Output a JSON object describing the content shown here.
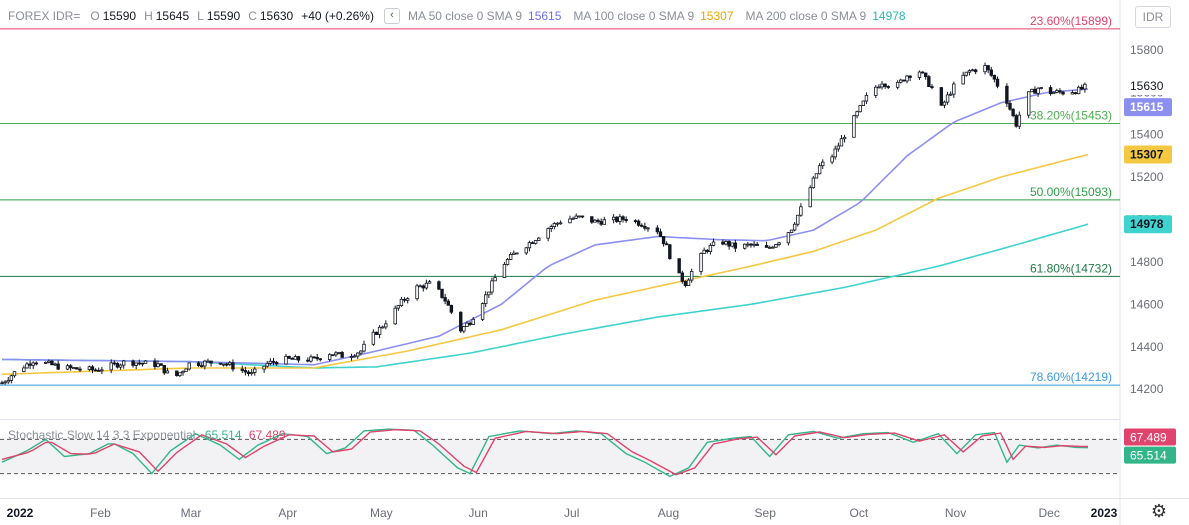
{
  "header": {
    "symbol": "FOREX IDR=",
    "open_label": "O",
    "open": "15590",
    "high_label": "H",
    "high": "15645",
    "low_label": "L",
    "low": "15590",
    "close_label": "C",
    "close": "15630",
    "change": "+40 (+0.26%)",
    "collapse_glyph": "‹",
    "ma50_label": "MA 50 close 0 SMA 9",
    "ma50_value": "15615",
    "ma100_label": "MA 100 close 0 SMA 9",
    "ma100_value": "15307",
    "ma200_label": "MA 200 close 0 SMA 9",
    "ma200_value": "14978"
  },
  "currency_button": "IDR",
  "stochastic": {
    "label": "Stochastic Slow 14 3 3 Exponential",
    "k_value": "65.514",
    "d_value": "67.489"
  },
  "colors": {
    "up": "#131722",
    "down": "#131722",
    "ma50": "#8b8ff0",
    "ma100": "#f5c842",
    "ma200": "#3fd3cf",
    "stoch_k": "#33b58a",
    "stoch_d": "#e0436b",
    "price_badge": "#ffffff"
  },
  "chart_data": {
    "type": "candlestick",
    "title": "FOREX IDR=",
    "y_ticks": [
      "15800",
      "15600",
      "15400",
      "15200",
      "15000",
      "14800",
      "14600",
      "14400",
      "14200"
    ],
    "ylim": [
      14130,
      15960
    ],
    "x_labels": [
      "2022",
      "Feb",
      "Mar",
      "Apr",
      "May",
      "Jun",
      "Jul",
      "Aug",
      "Sep",
      "Oct",
      "Nov",
      "Dec",
      "2023"
    ],
    "price_badges": {
      "last": "15630",
      "ma50": "15615",
      "ma100": "15307",
      "ma200": "14978"
    },
    "fib_levels": [
      {
        "label": "23.60%(15899)",
        "value": 15899,
        "color": "#e0436b"
      },
      {
        "label": "38.20%(15453)",
        "value": 15453,
        "color": "#4caf50"
      },
      {
        "label": "50.00%(15093)",
        "value": 15093,
        "color": "#2e9e48"
      },
      {
        "label": "61.80%(14732)",
        "value": 14732,
        "color": "#1f7a45"
      },
      {
        "label": "78.60%(14219)",
        "value": 14219,
        "color": "#3a9cd8"
      }
    ],
    "close_path": [
      [
        0,
        14230
      ],
      [
        5,
        14290
      ],
      [
        10,
        14335
      ],
      [
        20,
        14300
      ],
      [
        30,
        14290
      ],
      [
        40,
        14330
      ],
      [
        50,
        14315
      ],
      [
        55,
        14250
      ],
      [
        60,
        14320
      ],
      [
        70,
        14330
      ],
      [
        80,
        14270
      ],
      [
        85,
        14320
      ],
      [
        90,
        14340
      ],
      [
        100,
        14340
      ],
      [
        105,
        14370
      ],
      [
        110,
        14355
      ],
      [
        115,
        14380
      ],
      [
        118,
        14440
      ],
      [
        122,
        14500
      ],
      [
        128,
        14610
      ],
      [
        133,
        14680
      ],
      [
        138,
        14700
      ],
      [
        142,
        14620
      ],
      [
        147,
        14480
      ],
      [
        150,
        14520
      ],
      [
        155,
        14640
      ],
      [
        160,
        14780
      ],
      [
        165,
        14850
      ],
      [
        170,
        14900
      ],
      [
        175,
        14960
      ],
      [
        180,
        15000
      ],
      [
        185,
        15010
      ],
      [
        190,
        14990
      ],
      [
        195,
        14995
      ],
      [
        200,
        15005
      ],
      [
        205,
        14980
      ],
      [
        210,
        14950
      ],
      [
        213,
        14870
      ],
      [
        216,
        14750
      ],
      [
        219,
        14700
      ],
      [
        222,
        14780
      ],
      [
        225,
        14850
      ],
      [
        230,
        14900
      ],
      [
        235,
        14870
      ],
      [
        240,
        14880
      ],
      [
        245,
        14860
      ],
      [
        250,
        14910
      ],
      [
        253,
        14960
      ],
      [
        256,
        15050
      ],
      [
        259,
        15150
      ],
      [
        262,
        15250
      ],
      [
        266,
        15300
      ],
      [
        270,
        15400
      ],
      [
        274,
        15500
      ],
      [
        278,
        15600
      ],
      [
        282,
        15650
      ],
      [
        286,
        15620
      ],
      [
        290,
        15680
      ],
      [
        294,
        15700
      ],
      [
        298,
        15620
      ],
      [
        300,
        15500
      ],
      [
        303,
        15580
      ],
      [
        306,
        15650
      ],
      [
        310,
        15700
      ],
      [
        315,
        15720
      ],
      [
        318,
        15660
      ],
      [
        322,
        15560
      ],
      [
        325,
        15450
      ],
      [
        328,
        15580
      ],
      [
        332,
        15620
      ],
      [
        336,
        15600
      ],
      [
        340,
        15600
      ],
      [
        345,
        15610
      ],
      [
        348,
        15630
      ]
    ],
    "n_candles": 349,
    "ma50": {
      "value": 15615,
      "points": [
        [
          0,
          14340
        ],
        [
          60,
          14330
        ],
        [
          100,
          14315
        ],
        [
          120,
          14380
        ],
        [
          140,
          14450
        ],
        [
          160,
          14600
        ],
        [
          175,
          14780
        ],
        [
          190,
          14880
        ],
        [
          210,
          14920
        ],
        [
          230,
          14905
        ],
        [
          245,
          14900
        ],
        [
          260,
          14950
        ],
        [
          275,
          15080
        ],
        [
          290,
          15300
        ],
        [
          305,
          15460
        ],
        [
          320,
          15550
        ],
        [
          335,
          15600
        ],
        [
          348,
          15615
        ]
      ]
    },
    "ma100": {
      "value": 15307,
      "points": [
        [
          0,
          14270
        ],
        [
          60,
          14300
        ],
        [
          100,
          14300
        ],
        [
          130,
          14380
        ],
        [
          160,
          14480
        ],
        [
          190,
          14620
        ],
        [
          215,
          14700
        ],
        [
          240,
          14780
        ],
        [
          260,
          14850
        ],
        [
          280,
          14950
        ],
        [
          300,
          15100
        ],
        [
          320,
          15200
        ],
        [
          348,
          15307
        ]
      ]
    },
    "ma200": {
      "value": 14978,
      "points": [
        [
          0,
          14340
        ],
        [
          60,
          14330
        ],
        [
          100,
          14300
        ],
        [
          120,
          14305
        ],
        [
          150,
          14370
        ],
        [
          180,
          14460
        ],
        [
          210,
          14540
        ],
        [
          240,
          14600
        ],
        [
          270,
          14680
        ],
        [
          300,
          14780
        ],
        [
          320,
          14860
        ],
        [
          348,
          14978
        ]
      ]
    },
    "stochastic": {
      "ylim": [
        0,
        100
      ],
      "upper_band": 80,
      "lower_band": 20,
      "k_last": 65.514,
      "d_last": 67.489,
      "k_points": [
        [
          0,
          40
        ],
        [
          8,
          60
        ],
        [
          14,
          80
        ],
        [
          20,
          50
        ],
        [
          28,
          55
        ],
        [
          35,
          75
        ],
        [
          42,
          55
        ],
        [
          48,
          20
        ],
        [
          54,
          60
        ],
        [
          62,
          90
        ],
        [
          70,
          70
        ],
        [
          76,
          45
        ],
        [
          82,
          70
        ],
        [
          90,
          90
        ],
        [
          98,
          85
        ],
        [
          104,
          55
        ],
        [
          110,
          65
        ],
        [
          116,
          95
        ],
        [
          124,
          98
        ],
        [
          132,
          96
        ],
        [
          138,
          70
        ],
        [
          146,
          30
        ],
        [
          150,
          20
        ],
        [
          156,
          85
        ],
        [
          166,
          95
        ],
        [
          176,
          90
        ],
        [
          184,
          95
        ],
        [
          192,
          90
        ],
        [
          200,
          55
        ],
        [
          206,
          40
        ],
        [
          214,
          15
        ],
        [
          220,
          30
        ],
        [
          226,
          75
        ],
        [
          234,
          82
        ],
        [
          240,
          85
        ],
        [
          246,
          50
        ],
        [
          252,
          88
        ],
        [
          260,
          94
        ],
        [
          268,
          82
        ],
        [
          276,
          90
        ],
        [
          284,
          92
        ],
        [
          292,
          75
        ],
        [
          300,
          90
        ],
        [
          306,
          55
        ],
        [
          312,
          88
        ],
        [
          318,
          92
        ],
        [
          322,
          40
        ],
        [
          326,
          70
        ],
        [
          332,
          65
        ],
        [
          338,
          70
        ],
        [
          344,
          66
        ],
        [
          348,
          65.5
        ]
      ],
      "d_points": [
        [
          0,
          45
        ],
        [
          9,
          58
        ],
        [
          15,
          78
        ],
        [
          22,
          55
        ],
        [
          29,
          54
        ],
        [
          36,
          72
        ],
        [
          44,
          58
        ],
        [
          50,
          24
        ],
        [
          56,
          57
        ],
        [
          64,
          88
        ],
        [
          72,
          72
        ],
        [
          78,
          48
        ],
        [
          84,
          68
        ],
        [
          92,
          88
        ],
        [
          100,
          86
        ],
        [
          106,
          58
        ],
        [
          112,
          63
        ],
        [
          118,
          93
        ],
        [
          126,
          97
        ],
        [
          134,
          95
        ],
        [
          140,
          72
        ],
        [
          148,
          33
        ],
        [
          152,
          22
        ],
        [
          158,
          82
        ],
        [
          168,
          94
        ],
        [
          178,
          90
        ],
        [
          186,
          94
        ],
        [
          194,
          90
        ],
        [
          202,
          58
        ],
        [
          208,
          42
        ],
        [
          216,
          18
        ],
        [
          222,
          30
        ],
        [
          228,
          72
        ],
        [
          236,
          81
        ],
        [
          242,
          84
        ],
        [
          248,
          53
        ],
        [
          254,
          86
        ],
        [
          262,
          93
        ],
        [
          270,
          83
        ],
        [
          278,
          89
        ],
        [
          286,
          91
        ],
        [
          294,
          77
        ],
        [
          302,
          88
        ],
        [
          308,
          58
        ],
        [
          314,
          86
        ],
        [
          320,
          91
        ],
        [
          324,
          45
        ],
        [
          328,
          68
        ],
        [
          334,
          66
        ],
        [
          340,
          69
        ],
        [
          346,
          67.5
        ],
        [
          348,
          67.5
        ]
      ]
    }
  }
}
